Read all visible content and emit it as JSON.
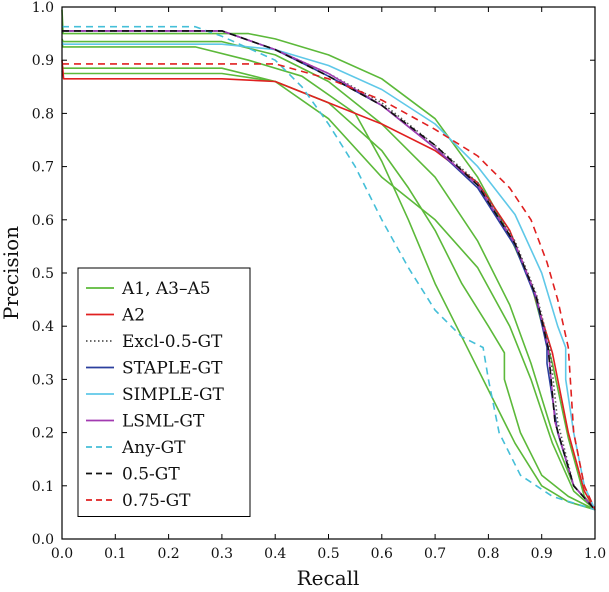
{
  "chart_data": {
    "type": "line",
    "title": "",
    "xlabel": "Recall",
    "ylabel": "Precision",
    "xlim": [
      0,
      1
    ],
    "ylim": [
      0,
      1
    ],
    "grid": false,
    "legend_position": "bottom-left",
    "x_ticks": [
      "0.0",
      "0.1",
      "0.2",
      "0.3",
      "0.4",
      "0.5",
      "0.6",
      "0.7",
      "0.8",
      "0.9",
      "1.0"
    ],
    "y_ticks": [
      "0.0",
      "0.1",
      "0.2",
      "0.3",
      "0.4",
      "0.5",
      "0.6",
      "0.7",
      "0.8",
      "0.9",
      "1.0"
    ],
    "legend": [
      {
        "label": "A1, A3–A5",
        "color": "#5cb93a",
        "dash": "solid"
      },
      {
        "label": "A2",
        "color": "#e02020",
        "dash": "solid"
      },
      {
        "label": "Excl-0.5-GT",
        "color": "#555555",
        "dash": "dotted"
      },
      {
        "label": "STAPLE-GT",
        "color": "#2b3f9e",
        "dash": "solid"
      },
      {
        "label": "SIMPLE-GT",
        "color": "#5fc8e8",
        "dash": "solid"
      },
      {
        "label": "LSML-GT",
        "color": "#a23ab0",
        "dash": "solid"
      },
      {
        "label": "Any-GT",
        "color": "#45bfd8",
        "dash": "dashed"
      },
      {
        "label": "0.5-GT",
        "color": "#111111",
        "dash": "dashed"
      },
      {
        "label": "0.75-GT",
        "color": "#e02020",
        "dash": "dashed"
      }
    ],
    "series": [
      {
        "color": "#5cb93a",
        "dash": "solid",
        "points": [
          [
            0,
            0.995
          ],
          [
            0.002,
            0.95
          ],
          [
            0.05,
            0.95
          ],
          [
            0.2,
            0.95
          ],
          [
            0.3,
            0.95
          ],
          [
            0.35,
            0.95
          ],
          [
            0.4,
            0.94
          ],
          [
            0.5,
            0.91
          ],
          [
            0.6,
            0.865
          ],
          [
            0.7,
            0.79
          ],
          [
            0.78,
            0.68
          ],
          [
            0.84,
            0.57
          ],
          [
            0.88,
            0.48
          ],
          [
            0.92,
            0.33
          ],
          [
            0.95,
            0.19
          ],
          [
            0.98,
            0.08
          ],
          [
            1.0,
            0.055
          ]
        ]
      },
      {
        "color": "#5cb93a",
        "dash": "solid",
        "points": [
          [
            0,
            0.94
          ],
          [
            0.002,
            0.935
          ],
          [
            0.3,
            0.935
          ],
          [
            0.4,
            0.91
          ],
          [
            0.5,
            0.86
          ],
          [
            0.6,
            0.78
          ],
          [
            0.7,
            0.68
          ],
          [
            0.78,
            0.56
          ],
          [
            0.84,
            0.44
          ],
          [
            0.88,
            0.33
          ],
          [
            0.92,
            0.2
          ],
          [
            0.96,
            0.1
          ],
          [
            1.0,
            0.055
          ]
        ]
      },
      {
        "color": "#5cb93a",
        "dash": "solid",
        "points": [
          [
            0,
            0.89
          ],
          [
            0.002,
            0.885
          ],
          [
            0.3,
            0.885
          ],
          [
            0.4,
            0.86
          ],
          [
            0.5,
            0.82
          ],
          [
            0.6,
            0.73
          ],
          [
            0.65,
            0.66
          ],
          [
            0.7,
            0.58
          ],
          [
            0.75,
            0.48
          ],
          [
            0.8,
            0.4
          ],
          [
            0.83,
            0.35
          ],
          [
            0.83,
            0.3
          ],
          [
            0.86,
            0.2
          ],
          [
            0.9,
            0.12
          ],
          [
            0.95,
            0.08
          ],
          [
            1.0,
            0.055
          ]
        ]
      },
      {
        "color": "#5cb93a",
        "dash": "solid",
        "points": [
          [
            0,
            0.93
          ],
          [
            0.002,
            0.925
          ],
          [
            0.25,
            0.925
          ],
          [
            0.35,
            0.9
          ],
          [
            0.45,
            0.87
          ],
          [
            0.55,
            0.8
          ],
          [
            0.6,
            0.71
          ],
          [
            0.65,
            0.6
          ],
          [
            0.7,
            0.48
          ],
          [
            0.75,
            0.38
          ],
          [
            0.8,
            0.28
          ],
          [
            0.85,
            0.18
          ],
          [
            0.9,
            0.1
          ],
          [
            0.95,
            0.07
          ],
          [
            1.0,
            0.055
          ]
        ]
      },
      {
        "color": "#5cb93a",
        "dash": "solid",
        "points": [
          [
            0,
            0.88
          ],
          [
            0.002,
            0.875
          ],
          [
            0.3,
            0.875
          ],
          [
            0.4,
            0.86
          ],
          [
            0.5,
            0.79
          ],
          [
            0.6,
            0.68
          ],
          [
            0.7,
            0.6
          ],
          [
            0.78,
            0.51
          ],
          [
            0.84,
            0.4
          ],
          [
            0.88,
            0.3
          ],
          [
            0.92,
            0.18
          ],
          [
            0.96,
            0.09
          ],
          [
            1.0,
            0.055
          ]
        ]
      },
      {
        "color": "#e02020",
        "dash": "solid",
        "points": [
          [
            0,
            0.9
          ],
          [
            0.003,
            0.865
          ],
          [
            0.3,
            0.865
          ],
          [
            0.4,
            0.86
          ],
          [
            0.5,
            0.82
          ],
          [
            0.6,
            0.78
          ],
          [
            0.7,
            0.73
          ],
          [
            0.78,
            0.67
          ],
          [
            0.84,
            0.58
          ],
          [
            0.88,
            0.48
          ],
          [
            0.92,
            0.35
          ],
          [
            0.95,
            0.2
          ],
          [
            0.98,
            0.09
          ],
          [
            1.0,
            0.055
          ]
        ]
      },
      {
        "color": "#555555",
        "dash": "dotted",
        "points": [
          [
            0,
            0.955
          ],
          [
            0.3,
            0.955
          ],
          [
            0.4,
            0.92
          ],
          [
            0.5,
            0.875
          ],
          [
            0.6,
            0.82
          ],
          [
            0.7,
            0.74
          ],
          [
            0.78,
            0.67
          ],
          [
            0.85,
            0.56
          ],
          [
            0.89,
            0.46
          ],
          [
            0.915,
            0.36
          ],
          [
            0.93,
            0.22
          ],
          [
            0.96,
            0.1
          ],
          [
            1.0,
            0.055
          ]
        ]
      },
      {
        "color": "#2b3f9e",
        "dash": "solid",
        "points": [
          [
            0,
            0.955
          ],
          [
            0.3,
            0.955
          ],
          [
            0.4,
            0.92
          ],
          [
            0.5,
            0.87
          ],
          [
            0.6,
            0.815
          ],
          [
            0.7,
            0.735
          ],
          [
            0.78,
            0.66
          ],
          [
            0.85,
            0.55
          ],
          [
            0.89,
            0.45
          ],
          [
            0.91,
            0.36
          ],
          [
            0.91,
            0.33
          ],
          [
            0.93,
            0.2
          ],
          [
            0.96,
            0.1
          ],
          [
            1.0,
            0.055
          ]
        ]
      },
      {
        "color": "#5fc8e8",
        "dash": "solid",
        "points": [
          [
            0,
            0.935
          ],
          [
            0.002,
            0.93
          ],
          [
            0.3,
            0.93
          ],
          [
            0.4,
            0.92
          ],
          [
            0.5,
            0.89
          ],
          [
            0.6,
            0.845
          ],
          [
            0.7,
            0.78
          ],
          [
            0.78,
            0.7
          ],
          [
            0.85,
            0.61
          ],
          [
            0.9,
            0.5
          ],
          [
            0.93,
            0.4
          ],
          [
            0.945,
            0.36
          ],
          [
            0.945,
            0.3
          ],
          [
            0.96,
            0.2
          ],
          [
            0.98,
            0.1
          ],
          [
            1.0,
            0.055
          ]
        ]
      },
      {
        "color": "#a23ab0",
        "dash": "solid",
        "points": [
          [
            0,
            0.955
          ],
          [
            0.3,
            0.955
          ],
          [
            0.4,
            0.92
          ],
          [
            0.5,
            0.875
          ],
          [
            0.6,
            0.815
          ],
          [
            0.7,
            0.735
          ],
          [
            0.78,
            0.665
          ],
          [
            0.85,
            0.555
          ],
          [
            0.89,
            0.455
          ],
          [
            0.912,
            0.36
          ],
          [
            0.925,
            0.22
          ],
          [
            0.96,
            0.1
          ],
          [
            1.0,
            0.055
          ]
        ]
      },
      {
        "color": "#45bfd8",
        "dash": "dashed",
        "points": [
          [
            0,
            0.963
          ],
          [
            0.25,
            0.963
          ],
          [
            0.3,
            0.945
          ],
          [
            0.4,
            0.9
          ],
          [
            0.45,
            0.85
          ],
          [
            0.5,
            0.78
          ],
          [
            0.55,
            0.7
          ],
          [
            0.6,
            0.6
          ],
          [
            0.65,
            0.51
          ],
          [
            0.7,
            0.43
          ],
          [
            0.75,
            0.38
          ],
          [
            0.79,
            0.36
          ],
          [
            0.8,
            0.3
          ],
          [
            0.82,
            0.2
          ],
          [
            0.86,
            0.12
          ],
          [
            0.92,
            0.08
          ],
          [
            1.0,
            0.055
          ]
        ]
      },
      {
        "color": "#111111",
        "dash": "dashed",
        "points": [
          [
            0,
            0.955
          ],
          [
            0.3,
            0.955
          ],
          [
            0.4,
            0.92
          ],
          [
            0.5,
            0.87
          ],
          [
            0.6,
            0.815
          ],
          [
            0.7,
            0.74
          ],
          [
            0.78,
            0.665
          ],
          [
            0.85,
            0.555
          ],
          [
            0.89,
            0.455
          ],
          [
            0.912,
            0.36
          ],
          [
            0.925,
            0.22
          ],
          [
            0.96,
            0.1
          ],
          [
            1.0,
            0.055
          ]
        ]
      },
      {
        "color": "#e02020",
        "dash": "dashed",
        "points": [
          [
            0,
            0.893
          ],
          [
            0.4,
            0.893
          ],
          [
            0.5,
            0.865
          ],
          [
            0.6,
            0.825
          ],
          [
            0.7,
            0.77
          ],
          [
            0.78,
            0.72
          ],
          [
            0.84,
            0.66
          ],
          [
            0.88,
            0.6
          ],
          [
            0.91,
            0.52
          ],
          [
            0.93,
            0.45
          ],
          [
            0.95,
            0.36
          ],
          [
            0.96,
            0.2
          ],
          [
            0.98,
            0.1
          ],
          [
            1.0,
            0.055
          ]
        ]
      }
    ]
  }
}
